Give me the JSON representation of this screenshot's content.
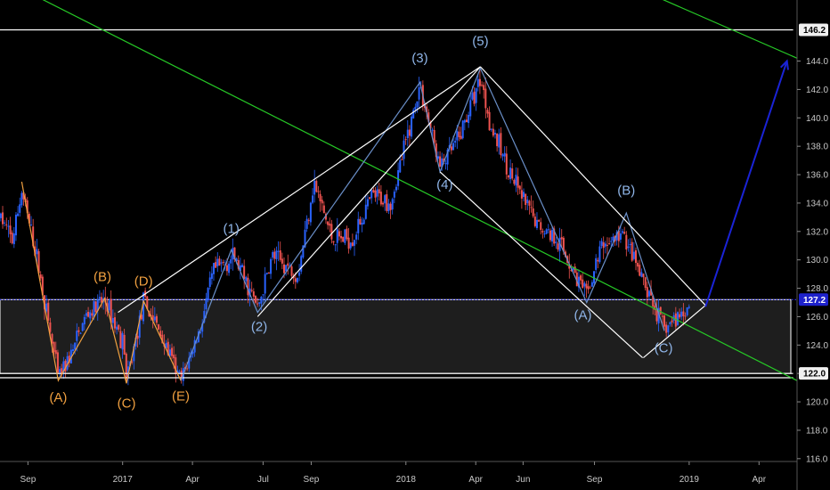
{
  "chart_data": {
    "type": "candlestick",
    "title": "",
    "xlabel": "",
    "ylabel": "",
    "x_ticks": [
      {
        "date": "2016-09-01",
        "label": "Sep"
      },
      {
        "date": "2017-01-01",
        "label": "2017"
      },
      {
        "date": "2017-04-01",
        "label": "Apr"
      },
      {
        "date": "2017-07-01",
        "label": "Jul"
      },
      {
        "date": "2017-09-01",
        "label": "Sep"
      },
      {
        "date": "2018-01-01",
        "label": "2018"
      },
      {
        "date": "2018-04-01",
        "label": "Apr"
      },
      {
        "date": "2018-06-01",
        "label": "Jun"
      },
      {
        "date": "2018-09-01",
        "label": "Sep"
      },
      {
        "date": "2019-01-01",
        "label": "2019"
      },
      {
        "date": "2019-04-01",
        "label": "Apr"
      }
    ],
    "y_ticks": [
      116.0,
      118.0,
      120.0,
      122.0,
      124.0,
      126.0,
      128.0,
      130.0,
      132.0,
      134.0,
      136.0,
      138.0,
      140.0,
      142.0,
      144.0
    ],
    "ylim": [
      115.8,
      148.3
    ],
    "xlim": [
      "2016-07-27",
      "2019-05-20"
    ],
    "grid": false,
    "colors": {
      "up": "#2962ff",
      "down": "#ef5350",
      "background": "#000000",
      "trend": "#26c826",
      "channel": "#ffffff",
      "arrow": "#1a23d6",
      "wave_orange": "#f0a040",
      "wave_blue": "#8fb5e8",
      "zone_line": "#3232ff"
    },
    "price_path": [
      {
        "date": "2016-07-28",
        "price": 133.0
      },
      {
        "date": "2016-08-12",
        "price": 131.3
      },
      {
        "date": "2016-08-24",
        "price": 134.8
      },
      {
        "date": "2016-09-12",
        "price": 130.3
      },
      {
        "date": "2016-10-10",
        "price": 121.7
      },
      {
        "date": "2016-10-28",
        "price": 123.5
      },
      {
        "date": "2016-11-14",
        "price": 126.0
      },
      {
        "date": "2016-12-09",
        "price": 127.2
      },
      {
        "date": "2017-01-03",
        "price": 124.0
      },
      {
        "date": "2017-01-06",
        "price": 121.3
      },
      {
        "date": "2017-01-28",
        "price": 127.0
      },
      {
        "date": "2017-02-14",
        "price": 125.4
      },
      {
        "date": "2017-03-17",
        "price": 121.4
      },
      {
        "date": "2017-04-11",
        "price": 125.2
      },
      {
        "date": "2017-04-28",
        "price": 129.2
      },
      {
        "date": "2017-05-25",
        "price": 130.2
      },
      {
        "date": "2017-06-24",
        "price": 126.6
      },
      {
        "date": "2017-07-13",
        "price": 130.3
      },
      {
        "date": "2017-08-15",
        "price": 129.0
      },
      {
        "date": "2017-09-04",
        "price": 135.5
      },
      {
        "date": "2017-09-28",
        "price": 131.5
      },
      {
        "date": "2017-10-24",
        "price": 131.5
      },
      {
        "date": "2017-11-19",
        "price": 134.5
      },
      {
        "date": "2017-12-13",
        "price": 134.1
      },
      {
        "date": "2018-01-19",
        "price": 142.3
      },
      {
        "date": "2018-02-14",
        "price": 136.5
      },
      {
        "date": "2018-03-10",
        "price": 138.5
      },
      {
        "date": "2018-04-07",
        "price": 142.9
      },
      {
        "date": "2018-04-21",
        "price": 139.3
      },
      {
        "date": "2018-05-20",
        "price": 135.5
      },
      {
        "date": "2018-06-17",
        "price": 132.6
      },
      {
        "date": "2018-07-15",
        "price": 131.5
      },
      {
        "date": "2018-08-22",
        "price": 127.4
      },
      {
        "date": "2018-09-10",
        "price": 131.0
      },
      {
        "date": "2018-10-08",
        "price": 131.8
      },
      {
        "date": "2018-11-03",
        "price": 128.3
      },
      {
        "date": "2018-11-30",
        "price": 125.1
      },
      {
        "date": "2018-12-28",
        "price": 126.6
      },
      {
        "date": "2019-01-02",
        "price": 126.9
      }
    ],
    "lines": [
      {
        "id": "support-line-top",
        "color": "#ffffff",
        "points": [
          {
            "date": "2016-07-27",
            "price": 146.2
          },
          {
            "date": "2019-05-15",
            "price": 146.2
          }
        ]
      },
      {
        "id": "support-line-bottom",
        "color": "#ffffff",
        "points": [
          {
            "date": "2016-07-27",
            "price": 122.0
          },
          {
            "date": "2019-05-15",
            "price": 122.0
          }
        ]
      },
      {
        "id": "support-line-bottom-2",
        "color": "#ffffff",
        "points": [
          {
            "date": "2016-07-27",
            "price": 121.7
          },
          {
            "date": "2019-05-15",
            "price": 121.7
          }
        ]
      },
      {
        "id": "green-trendline-main",
        "color": "#26c826",
        "points": [
          {
            "date": "2016-09-03",
            "price": 148.8
          },
          {
            "date": "2019-05-20",
            "price": 121.5
          }
        ]
      },
      {
        "id": "green-trendline-upper",
        "color": "#26c826",
        "points": [
          {
            "date": "2018-11-21",
            "price": 148.5
          },
          {
            "date": "2019-05-20",
            "price": 144.2
          }
        ]
      },
      {
        "id": "orange-wave-line",
        "color": "#f0a040",
        "points": [
          {
            "date": "2016-08-24",
            "price": 135.5
          },
          {
            "date": "2016-10-10",
            "price": 121.5
          },
          {
            "date": "2016-12-09",
            "price": 127.3
          },
          {
            "date": "2017-01-06",
            "price": 121.3
          },
          {
            "date": "2017-01-28",
            "price": 127.1
          },
          {
            "date": "2017-03-17",
            "price": 121.5
          }
        ]
      },
      {
        "id": "blue-wave-line",
        "color": "#6a8fc8",
        "points": [
          {
            "date": "2017-03-17",
            "price": 121.5
          },
          {
            "date": "2017-05-21",
            "price": 130.7
          },
          {
            "date": "2017-06-24",
            "price": 126.3
          },
          {
            "date": "2018-01-19",
            "price": 142.5
          },
          {
            "date": "2018-02-14",
            "price": 136.2
          },
          {
            "date": "2018-04-07",
            "price": 143.5
          },
          {
            "date": "2018-08-22",
            "price": 127.0
          },
          {
            "date": "2018-10-12",
            "price": 133.3
          },
          {
            "date": "2018-11-30",
            "price": 125.0
          }
        ]
      },
      {
        "id": "impulse-channel-upper",
        "color": "#ffffff",
        "points": [
          {
            "date": "2016-12-26",
            "price": 126.3
          },
          {
            "date": "2018-04-07",
            "price": 143.6
          }
        ]
      },
      {
        "id": "impulse-channel-lower",
        "color": "#ffffff",
        "points": [
          {
            "date": "2017-06-24",
            "price": 126.0
          },
          {
            "date": "2018-04-07",
            "price": 143.6
          }
        ]
      },
      {
        "id": "correction-channel-upper",
        "color": "#ffffff",
        "points": [
          {
            "date": "2018-04-07",
            "price": 143.6
          },
          {
            "date": "2019-01-22",
            "price": 126.8
          }
        ]
      },
      {
        "id": "correction-channel-lower",
        "color": "#ffffff",
        "points": [
          {
            "date": "2018-02-14",
            "price": 136.2
          },
          {
            "date": "2018-11-02",
            "price": 123.1
          }
        ]
      },
      {
        "id": "correction-channel-end",
        "color": "#ffffff",
        "points": [
          {
            "date": "2018-11-03",
            "price": 123.1
          },
          {
            "date": "2019-01-22",
            "price": 126.8
          }
        ]
      }
    ],
    "forecast_arrow": {
      "color": "#1a23d6",
      "from": {
        "date": "2019-01-22",
        "price": 126.7
      },
      "to": {
        "date": "2019-05-07",
        "price": 144.0
      }
    },
    "zone": {
      "top": 127.2,
      "bottom": 122.0
    },
    "wave_labels": [
      {
        "text": "(A)",
        "color": "#f0a040",
        "date": "2016-10-10",
        "price": 120.0
      },
      {
        "text": "(B)",
        "color": "#f0a040",
        "date": "2016-12-06",
        "price": 128.5
      },
      {
        "text": "(C)",
        "color": "#f0a040",
        "date": "2017-01-06",
        "price": 119.6
      },
      {
        "text": "(D)",
        "color": "#f0a040",
        "date": "2017-01-28",
        "price": 128.2
      },
      {
        "text": "(E)",
        "color": "#f0a040",
        "date": "2017-03-17",
        "price": 120.1
      },
      {
        "text": "(1)",
        "color": "#8fb5e8",
        "date": "2017-05-21",
        "price": 131.9
      },
      {
        "text": "(2)",
        "color": "#8fb5e8",
        "date": "2017-06-26",
        "price": 125.0
      },
      {
        "text": "(3)",
        "color": "#8fb5e8",
        "date": "2018-01-19",
        "price": 143.9
      },
      {
        "text": "(4)",
        "color": "#8fb5e8",
        "date": "2018-02-20",
        "price": 135.0
      },
      {
        "text": "(5)",
        "color": "#8fb5e8",
        "date": "2018-04-07",
        "price": 145.1
      },
      {
        "text": "(A)",
        "color": "#8fb5e8",
        "date": "2018-08-17",
        "price": 125.8
      },
      {
        "text": "(B)",
        "color": "#8fb5e8",
        "date": "2018-10-12",
        "price": 134.6
      },
      {
        "text": "(C)",
        "color": "#8fb5e8",
        "date": "2018-11-29",
        "price": 123.5
      }
    ],
    "price_tags": [
      {
        "id": "price-tag-146",
        "label": "146.2",
        "price": 146.2,
        "bg": "#f0f0f0",
        "fg": "#000000"
      },
      {
        "id": "price-tag-127",
        "label": "127.2",
        "price": 127.2,
        "bg": "#1e22cc",
        "fg": "#ffffff"
      },
      {
        "id": "price-tag-122",
        "label": "122.0",
        "price": 122.0,
        "bg": "#f0f0f0",
        "fg": "#000000"
      }
    ]
  }
}
